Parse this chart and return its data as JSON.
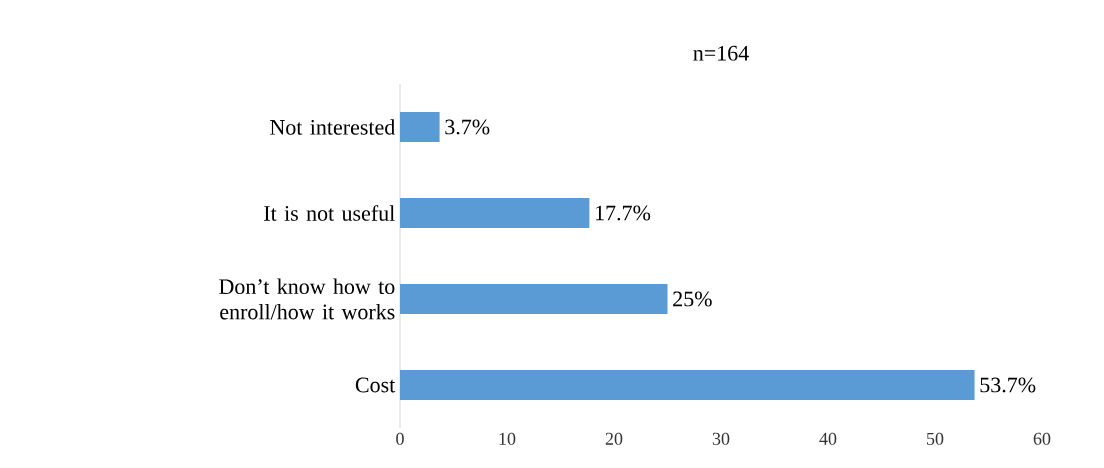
{
  "chart_data": {
    "type": "bar",
    "orientation": "horizontal",
    "title": "n=164",
    "categories": [
      "Not interested",
      "It is not useful",
      "Don’t know how to enroll/how it works",
      "Cost"
    ],
    "values": [
      3.7,
      17.7,
      25,
      53.7
    ],
    "value_labels": [
      "3.7%",
      "17.7%",
      "25%",
      "53.7%"
    ],
    "color": "#5b9bd5",
    "xlim": [
      0,
      60
    ],
    "xticks": [
      0,
      10,
      20,
      30,
      40,
      50,
      60
    ]
  }
}
